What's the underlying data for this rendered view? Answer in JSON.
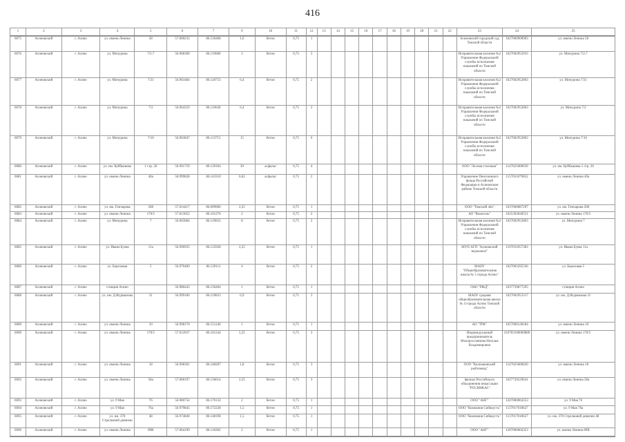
{
  "page": {
    "number": "416"
  },
  "table": {
    "headers": [
      "1",
      "2",
      "3",
      "4",
      "5",
      "6",
      "7",
      "9",
      "10",
      "11",
      "12",
      "13",
      "14",
      "15",
      "16",
      "17",
      "18",
      "19",
      "20",
      "21",
      "22",
      "23",
      "24",
      "25"
    ],
    "rows": [
      [
        "6075",
        "Асиновский",
        "г. Асино",
        "ул. имени Ленина",
        "58",
        "57.000232",
        "86.136468",
        "1,6",
        "бетон",
        "0,75",
        "1",
        "",
        "",
        "",
        "",
        "",
        "",
        "",
        "",
        "",
        "",
        "Асиновский городской суд Томской области",
        "1027000900903",
        "ул. имени Ленина 58"
      ],
      [
        "6076",
        "Асиновский",
        "г. Асино",
        "ул. Мичурина",
        "7/2.7",
        "56.968389",
        "86.119680",
        "3",
        "бетон",
        "0,75",
        "3",
        "",
        "",
        "",
        "",
        "",
        "",
        "",
        "",
        "",
        "",
        "Исправительная колония №2 Управления Федеральной службы исполнения наказаний по Томской области",
        "1027002952933",
        "ул. Мичурина 7/2.7"
      ],
      [
        "6077",
        "Асиновский",
        "г. Асино",
        "ул. Мичурина",
        "7/21",
        "56.963484",
        "86.120753",
        "6,4",
        "бетон",
        "0,75",
        "2",
        "",
        "",
        "",
        "",
        "",
        "",
        "",
        "",
        "",
        "",
        "Исправительная колония №2 Управления Федеральной службы исполнения наказаний по Томской области",
        "1027002952803",
        "ул. Мичурина 7/21"
      ],
      [
        "6078",
        "Асиновский",
        "г. Асино",
        "ул. Мичурина",
        "7/2",
        "56.964359",
        "86.119646",
        "6,4",
        "бетон",
        "0,75",
        "2",
        "",
        "",
        "",
        "",
        "",
        "",
        "",
        "",
        "",
        "",
        "Исправительная колония №2 Управления Федеральной службы исполнения наказаний по Томской области",
        "1027002952803",
        "ул. Мичурина 7/2"
      ],
      [
        "6079",
        "Асиновский",
        "г. Асино",
        "ул. Мичурина",
        "7/10",
        "56.963847",
        "86.113715",
        "15",
        "бетон",
        "0,75",
        "6",
        "",
        "",
        "",
        "",
        "",
        "",
        "",
        "",
        "",
        "",
        "Исправительная колония №2 Управления Федеральной службы исполнения наказаний по Томской области",
        "1027002952803",
        "ул. Мичурина 7/10"
      ],
      [
        "6080",
        "Асиновский",
        "г. Асино",
        "ул. им. Куйбышева",
        "1 стр. 26",
        "56.991759",
        "86.139104",
        "30",
        "асфальт",
        "0,75",
        "4",
        "",
        "",
        "",
        "",
        "",
        "",
        "",
        "",
        "",
        "",
        "ООО \"Лесная столовая\"",
        "1147025000039",
        "ул. им. Куйбышева 1 стр. 26"
      ],
      [
        "6081",
        "Асиновский",
        "г. Асино",
        "ул. имени Ленина",
        "40а",
        "56.999828",
        "86.143310",
        "6,62",
        "асфальт",
        "0,75",
        "2",
        "",
        "",
        "",
        "",
        "",
        "",
        "",
        "",
        "",
        "",
        "Управление Пенсионного фонда Российской Федерации в Асиновском районе Томской области",
        "1157031079852",
        "ул. имени Ленина 40а"
      ],
      [
        "6082",
        "Асиновский",
        "г. Асино",
        "ул. им. Гончарова",
        "268",
        "57.014417",
        "86.099966",
        "2,25",
        "бетон",
        "0,75",
        "1",
        "",
        "",
        "",
        "",
        "",
        "",
        "",
        "",
        "",
        "",
        "ООО \"Томский лён\"",
        "1037000087297",
        "ул. им. Гончарова 268"
      ],
      [
        "6083",
        "Асиновский",
        "г. Асино",
        "ул. имени Ленина",
        "170/5",
        "57.013052",
        "86.101270",
        "2",
        "бетон",
        "0,75",
        "2",
        "",
        "",
        "",
        "",
        "",
        "",
        "",
        "",
        "",
        "",
        "АО \"Вокигель\"",
        "1025303028551",
        "ул. имени Ленина 170/5"
      ],
      [
        "6084",
        "Асиновский",
        "г. Асино",
        "ул. Мичурина",
        "7",
        "56.963684",
        "86.119033",
        "8",
        "бетон",
        "0,75",
        "2",
        "",
        "",
        "",
        "",
        "",
        "",
        "",
        "",
        "",
        "",
        "Исправительная колония №2 Управления Федеральной службы исполнения наказаний по Томской области",
        "1027002952803",
        "ул. Мичурина 7"
      ],
      [
        "6085",
        "Асиновский",
        "г. Асино",
        "ул. Ивана Буева",
        "11а",
        "56.996935",
        "86.135928",
        "2,25",
        "бетон",
        "0,75",
        "1",
        "",
        "",
        "",
        "",
        "",
        "",
        "",
        "",
        "",
        "",
        "МУП АГП \"Асиновский водоканал\"",
        "1197031057383",
        "ул. Ивана Буева 11а"
      ],
      [
        "6086",
        "Асиновский",
        "г. Асино",
        "ул. Березовая",
        "5",
        "56.970409",
        "86.139111",
        "4",
        "бетон",
        "0,75",
        "2",
        "",
        "",
        "",
        "",
        "",
        "",
        "",
        "",
        "",
        "",
        "МАОУ \"Общеобразовательная школа № 5 города Асино\"",
        "1027003295336",
        "ул. Березовая 5"
      ],
      [
        "6087",
        "Асиновский",
        "г. Асино",
        "станция Асино",
        "",
        "56.986443",
        "86.136464",
        "1",
        "бетон",
        "0,75",
        "1",
        "",
        "",
        "",
        "",
        "",
        "",
        "",
        "",
        "",
        "",
        "ОАО \"РЖД\"",
        "1037739877295",
        "станция Асино"
      ],
      [
        "6088",
        "Асиновский",
        "г. Асино",
        "ул. им. Д.Фурманова",
        "31",
        "56.999106",
        "86.129823",
        "6,9",
        "бетон",
        "0,75",
        "3",
        "",
        "",
        "",
        "",
        "",
        "",
        "",
        "",
        "",
        "",
        "МАОУ средняя общеобразовательная школа № 4 города Асино Томской области",
        "1027002953317",
        "ул. им. Д.Фурманова 31"
      ],
      [
        "6089",
        "Асиновский",
        "г. Асино",
        "ул. имени Ленина",
        "10",
        "56.998170",
        "86.151246",
        "1",
        "бетон",
        "0,75",
        "1",
        "",
        "",
        "",
        "",
        "",
        "",
        "",
        "",
        "",
        "",
        "АО \"ТРК\"",
        "1057000128184",
        "ул. имени Ленина 10"
      ],
      [
        "6090",
        "Асиновский",
        "г. Асино",
        "ул. имени Ленина",
        "170/5",
        "57.012037",
        "86.101244",
        "5,25",
        "бетон",
        "0,75",
        "3",
        "",
        "",
        "",
        "",
        "",
        "",
        "",
        "",
        "",
        "",
        "Индивидуальный предприниматель Малороссиянова Наталья Владимировна",
        "316703100069880",
        "ул. имени Ленина 170/5"
      ],
      [
        "6091",
        "Асиновский",
        "г. Асино",
        "ул. имени Ленина",
        "18",
        "56.998301",
        "86.148287",
        "1,8",
        "бетон",
        "0,75",
        "3",
        "",
        "",
        "",
        "",
        "",
        "",
        "",
        "",
        "",
        "",
        "ООО \"Колпашевский рыбозавод\"",
        "1147025000020",
        "ул. имени Ленина 18"
      ],
      [
        "6092",
        "Асиновский",
        "г. Асино",
        "ул. имени Ленина",
        "58а",
        "57.000197",
        "86.136614",
        "2,25",
        "бетон",
        "0,75",
        "3",
        "",
        "",
        "",
        "",
        "",
        "",
        "",
        "",
        "",
        "",
        "филиал Российского объединения инкассации \"РОСИНКАС\"",
        "1027739529641",
        "ул. имени Ленина 58а"
      ],
      [
        "6093",
        "Асиновский",
        "г. Асино",
        "ул. 9 Мая",
        "76",
        "56.980754",
        "86.170132",
        "2",
        "бетон",
        "0,75",
        "1",
        "",
        "",
        "",
        "",
        "",
        "",
        "",
        "",
        "",
        "",
        "ООО \"АНГ\"",
        "1207000004353",
        "ул. 9 Мая 76"
      ],
      [
        "6094",
        "Асиновский",
        "г. Асино",
        "ул. 9 Мая",
        "76а",
        "56.979845",
        "86.172228",
        "1,5",
        "бетон",
        "0,75",
        "1",
        "",
        "",
        "",
        "",
        "",
        "",
        "",
        "",
        "",
        "",
        "ООО \"Компания Сибвкусть\"",
        "1137017018627",
        "ул. 9 Мая 76а"
      ],
      [
        "6095",
        "Асиновский",
        "г. Асино",
        "ул. им. 370 Стрелковой дивизии",
        "48",
        "56.974840",
        "86.148198",
        "1,5",
        "бетон",
        "0,75",
        "1",
        "",
        "",
        "",
        "",
        "",
        "",
        "",
        "",
        "",
        "",
        "ООО \"Компания Сибвкусть\"",
        "1137017018627",
        "ул. им. 370 Стрелковой дивизии 48"
      ],
      [
        "6096",
        "Асиновский",
        "г. Асино",
        "ул. имени Ленина",
        "89В",
        "57.004199",
        "86.118382",
        "2",
        "бетон",
        "0,75",
        "1",
        "",
        "",
        "",
        "",
        "",
        "",
        "",
        "",
        "",
        "",
        "ООО \"АНГ\"",
        "1207000004353",
        "ул. имени Ленина 89В"
      ]
    ]
  }
}
